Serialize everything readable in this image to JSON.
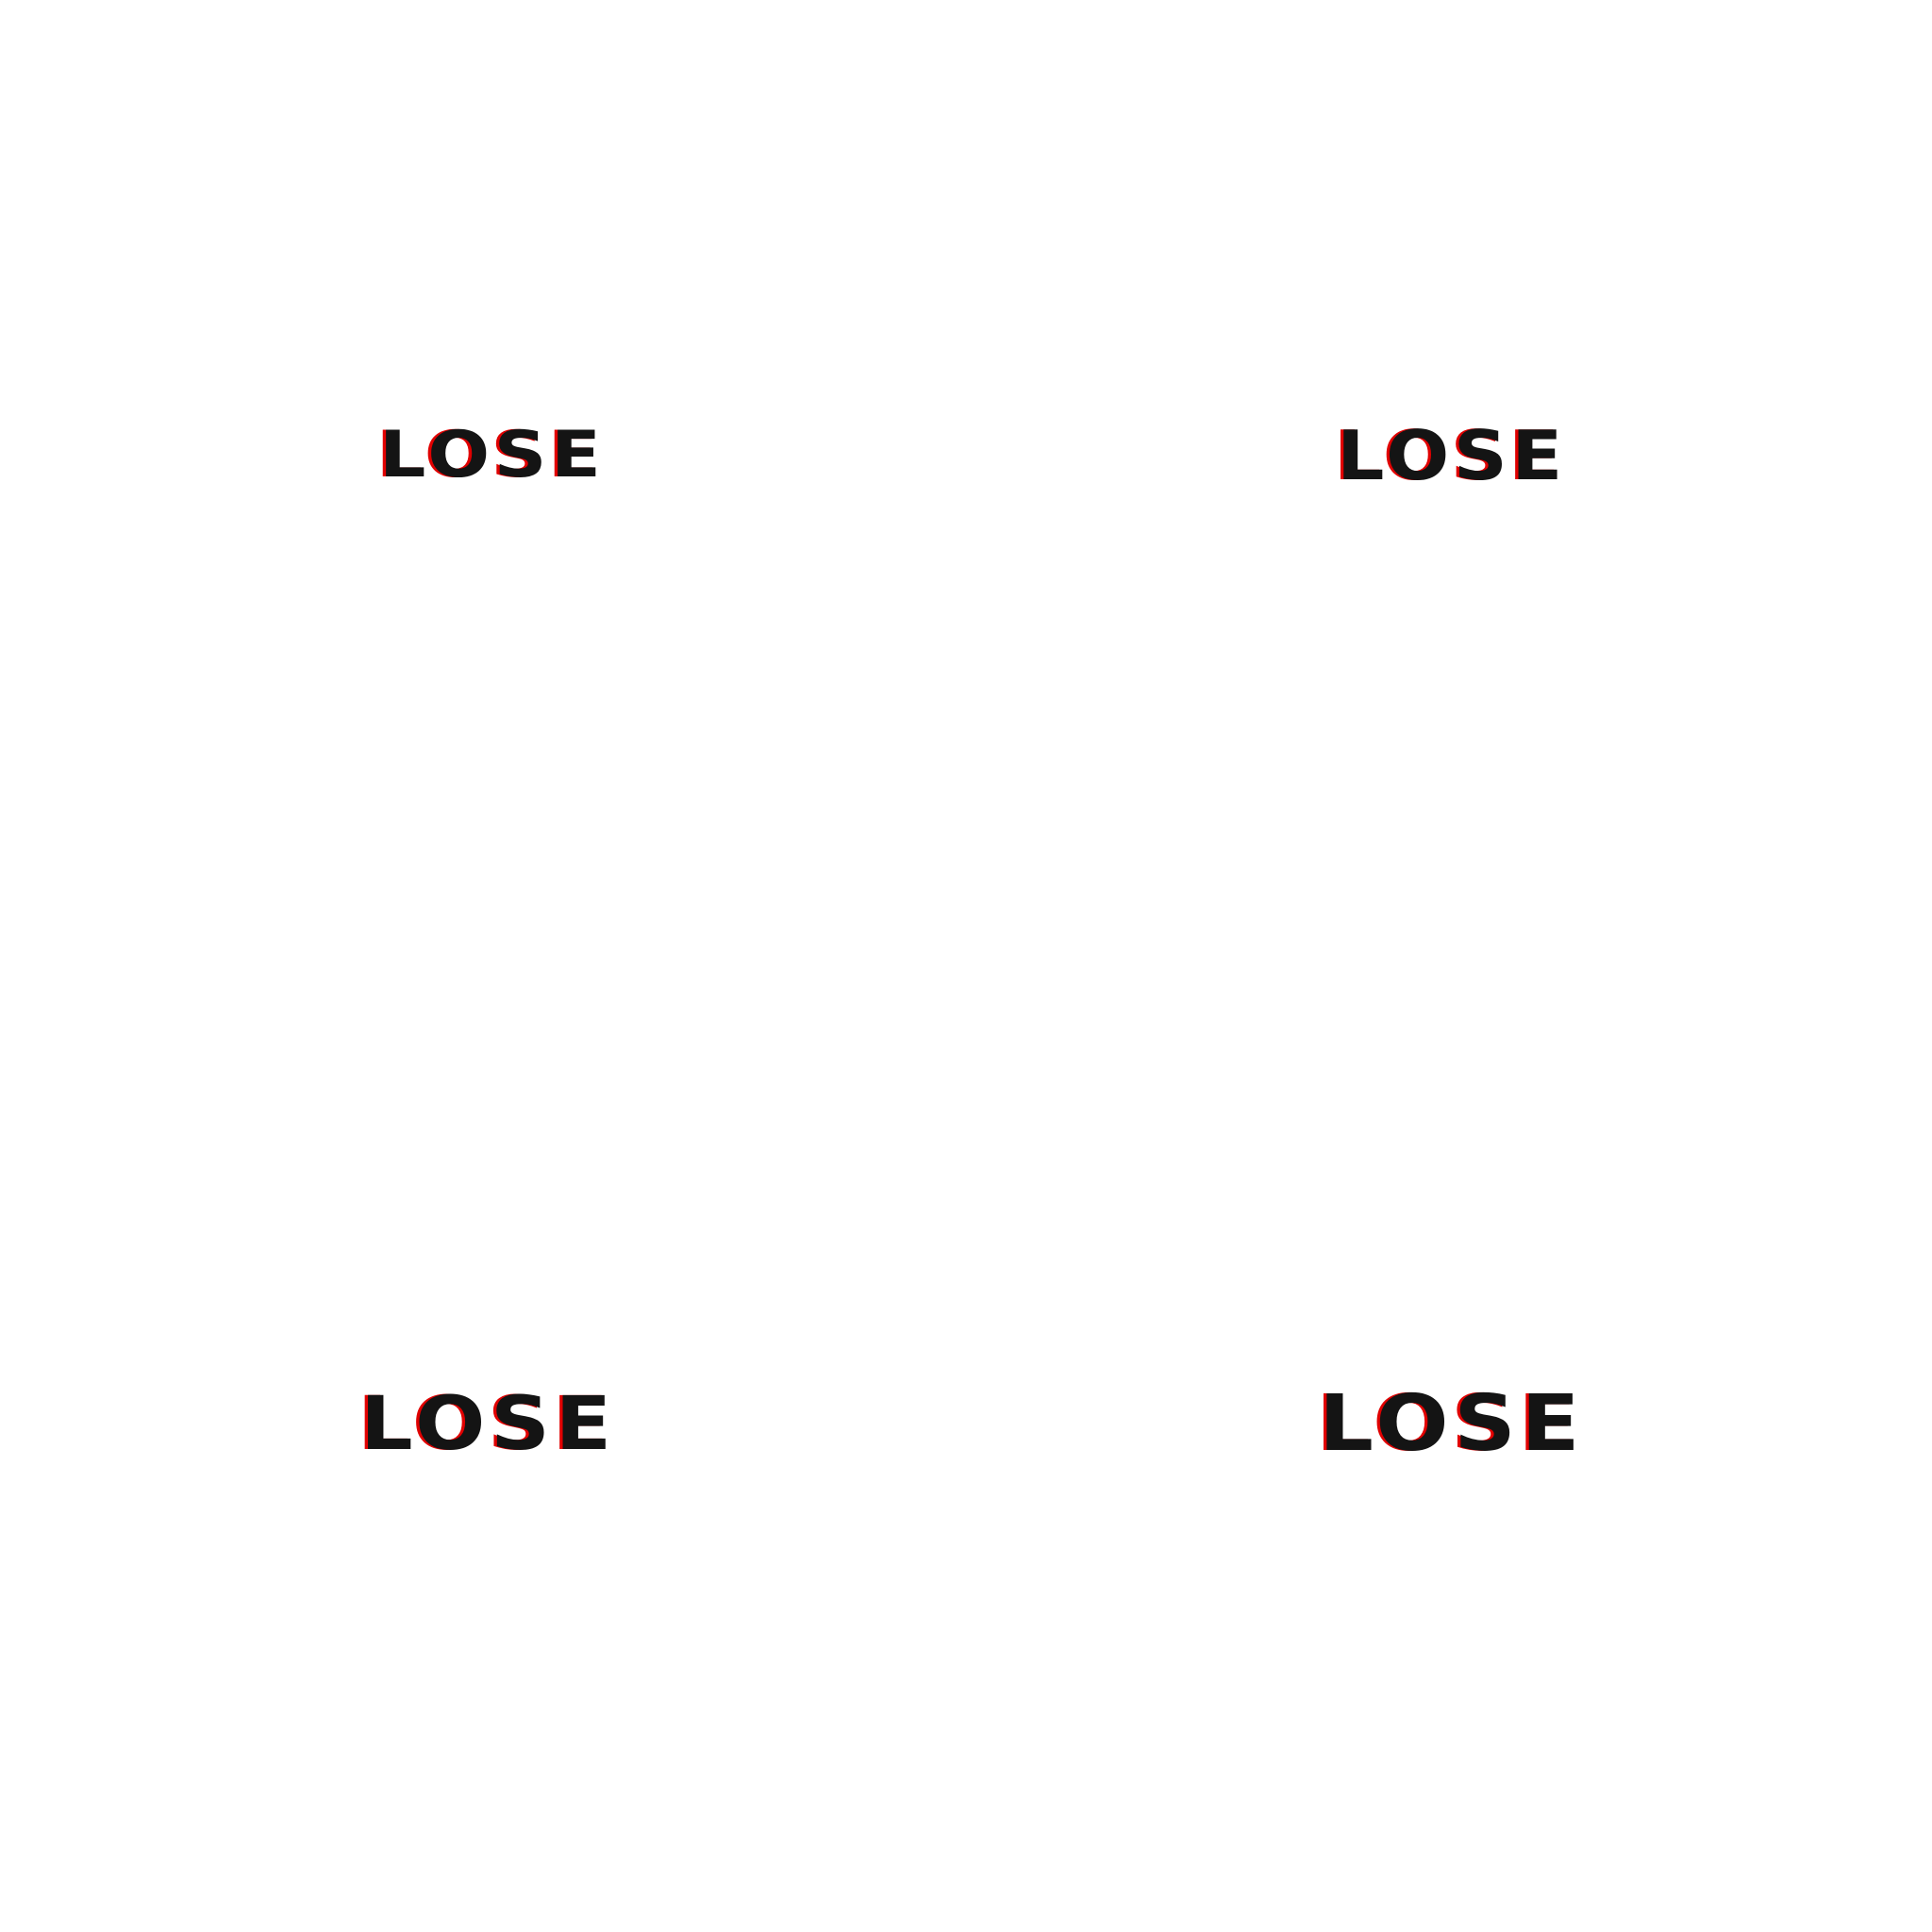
{
  "words": [
    {
      "text": "LOSE"
    },
    {
      "text": "LOSE"
    },
    {
      "text": "LOSE"
    },
    {
      "text": "LOSE"
    }
  ],
  "colors": {
    "background": "#ffffff",
    "text": "#141414",
    "shadow_offset": "#e00000"
  }
}
